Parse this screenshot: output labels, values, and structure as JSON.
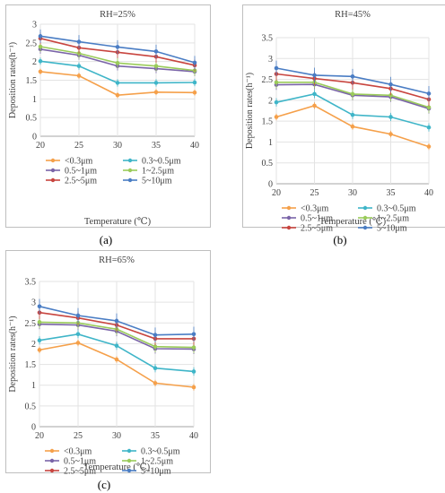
{
  "chart_data": [
    {
      "type": "line",
      "title": "RH=25%",
      "xlabel": "Temperature (℃)",
      "ylabel": "Deposition rates(h⁻¹)",
      "x": [
        20,
        25,
        30,
        35,
        40
      ],
      "ylim": [
        0,
        3
      ],
      "yticks": [
        0,
        0.5,
        1,
        1.5,
        2,
        2.5,
        3
      ],
      "legend": "bottom",
      "series": [
        {
          "name": "<0.3μm",
          "color": "#f5a04a",
          "values": [
            1.73,
            1.62,
            1.1,
            1.18,
            1.17
          ]
        },
        {
          "name": "0.3~0.5μm",
          "color": "#3fb5c8",
          "values": [
            2.01,
            1.88,
            1.43,
            1.43,
            1.44
          ]
        },
        {
          "name": "0.5~1μm",
          "color": "#7a64a8",
          "values": [
            2.33,
            2.17,
            1.88,
            1.81,
            1.73
          ]
        },
        {
          "name": "1~2.5μm",
          "color": "#9acb5a",
          "values": [
            2.4,
            2.22,
            1.96,
            1.88,
            1.76
          ]
        },
        {
          "name": "2.5~5μm",
          "color": "#c8453f",
          "values": [
            2.62,
            2.37,
            2.25,
            2.13,
            1.9
          ]
        },
        {
          "name": "5~10μm",
          "color": "#4a7dc4",
          "values": [
            2.68,
            2.53,
            2.39,
            2.27,
            1.97
          ]
        }
      ]
    },
    {
      "type": "line",
      "title": "RH=45%",
      "xlabel": "Temperature (℃)",
      "ylabel": "Deposition rates(h⁻¹)",
      "x": [
        20,
        25,
        30,
        35,
        40
      ],
      "ylim": [
        0,
        3.5
      ],
      "yticks": [
        0,
        0.5,
        1,
        1.5,
        2,
        2.5,
        3,
        3.5
      ],
      "legend": "bottom",
      "series": [
        {
          "name": "<0.3μm",
          "color": "#f5a04a",
          "values": [
            1.6,
            1.87,
            1.37,
            1.19,
            0.89
          ]
        },
        {
          "name": "0.3~0.5μm",
          "color": "#3fb5c8",
          "values": [
            1.95,
            2.15,
            1.65,
            1.6,
            1.35
          ]
        },
        {
          "name": "0.5~1μm",
          "color": "#7a64a8",
          "values": [
            2.37,
            2.38,
            2.12,
            2.08,
            1.8
          ]
        },
        {
          "name": "1~2.5μm",
          "color": "#9acb5a",
          "values": [
            2.43,
            2.43,
            2.15,
            2.12,
            1.83
          ]
        },
        {
          "name": "2.5~5μm",
          "color": "#c8453f",
          "values": [
            2.63,
            2.52,
            2.42,
            2.28,
            2.02
          ]
        },
        {
          "name": "5~10μm",
          "color": "#4a7dc4",
          "values": [
            2.77,
            2.6,
            2.57,
            2.38,
            2.16
          ]
        }
      ]
    },
    {
      "type": "line",
      "title": "RH=65%",
      "xlabel": "Temperature (℃)",
      "ylabel": "Deposition rates(h⁻¹)",
      "x": [
        20,
        25,
        30,
        35,
        40
      ],
      "ylim": [
        0,
        3.5
      ],
      "yticks": [
        0,
        0.5,
        1,
        1.5,
        2,
        2.5,
        3,
        3.5
      ],
      "legend": "bottom",
      "series": [
        {
          "name": "<0.3μm",
          "color": "#f5a04a",
          "values": [
            1.85,
            2.02,
            1.62,
            1.05,
            0.95
          ]
        },
        {
          "name": "0.3~0.5μm",
          "color": "#3fb5c8",
          "values": [
            2.08,
            2.23,
            1.95,
            1.41,
            1.33
          ]
        },
        {
          "name": "0.5~1μm",
          "color": "#7a64a8",
          "values": [
            2.47,
            2.45,
            2.3,
            1.88,
            1.87
          ]
        },
        {
          "name": "1~2.5μm",
          "color": "#9acb5a",
          "values": [
            2.52,
            2.5,
            2.35,
            1.93,
            1.91
          ]
        },
        {
          "name": "2.5~5μm",
          "color": "#c8453f",
          "values": [
            2.75,
            2.62,
            2.45,
            2.12,
            2.12
          ]
        },
        {
          "name": "5~10μm",
          "color": "#4a7dc4",
          "values": [
            2.9,
            2.68,
            2.55,
            2.21,
            2.23
          ]
        }
      ]
    }
  ],
  "panel_labels": {
    "a": "(a)",
    "b": "(b)",
    "c": "(c)"
  }
}
